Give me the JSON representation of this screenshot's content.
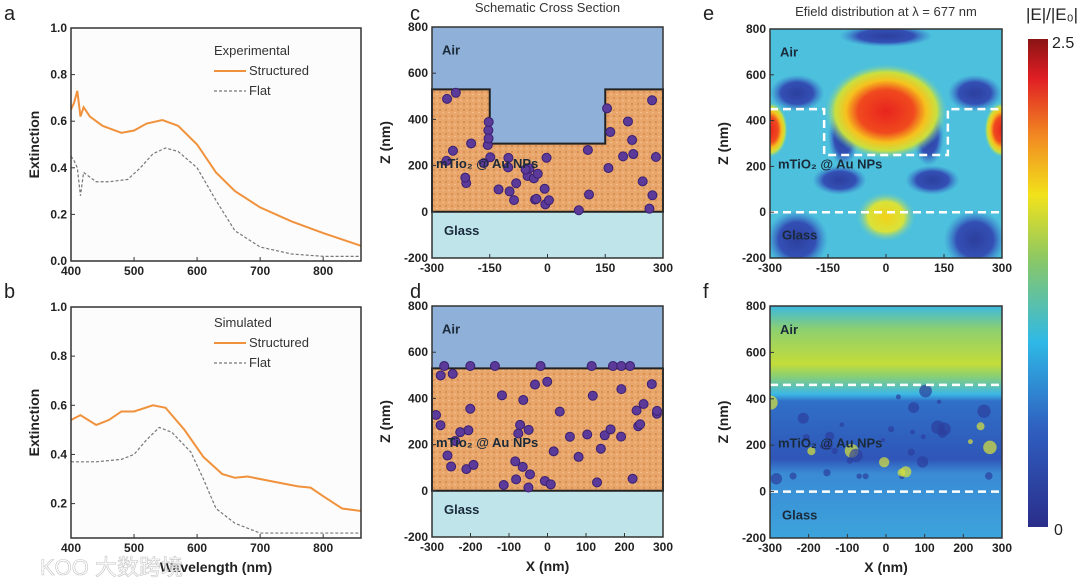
{
  "chart_data": [
    {
      "panel": "a",
      "type": "line",
      "xlabel": "",
      "ylabel": "Extinction",
      "xlim": [
        400,
        860
      ],
      "ylim": [
        0,
        1.0
      ],
      "xticks": [
        400,
        500,
        600,
        700,
        800
      ],
      "yticks": [
        0.0,
        0.2,
        0.4,
        0.6,
        0.8,
        1.0
      ],
      "legend": {
        "title": "Experimental",
        "placement": "top-right"
      },
      "series": [
        {
          "name": "Structured",
          "color": "#f0923c",
          "style": "solid",
          "x": [
            400,
            405,
            410,
            415,
            420,
            430,
            440,
            450,
            460,
            480,
            500,
            520,
            545,
            570,
            600,
            630,
            660,
            700,
            750,
            800,
            860
          ],
          "y": [
            0.65,
            0.68,
            0.73,
            0.62,
            0.66,
            0.62,
            0.6,
            0.58,
            0.57,
            0.55,
            0.56,
            0.59,
            0.605,
            0.58,
            0.5,
            0.38,
            0.3,
            0.23,
            0.17,
            0.12,
            0.065
          ]
        },
        {
          "name": "Flat",
          "color": "#777777",
          "style": "dashed",
          "x": [
            400,
            405,
            410,
            415,
            420,
            430,
            440,
            460,
            490,
            510,
            530,
            550,
            570,
            600,
            630,
            660,
            700,
            750,
            800,
            860
          ],
          "y": [
            0.45,
            0.43,
            0.4,
            0.28,
            0.38,
            0.36,
            0.34,
            0.34,
            0.35,
            0.4,
            0.46,
            0.485,
            0.47,
            0.4,
            0.26,
            0.13,
            0.06,
            0.03,
            0.02,
            0.02
          ]
        }
      ]
    },
    {
      "panel": "b",
      "type": "line",
      "xlabel": "Wavelength (nm)",
      "ylabel": "Extinction",
      "xlim": [
        400,
        860
      ],
      "ylim": [
        0.06,
        1.0
      ],
      "xticks": [
        400,
        500,
        600,
        700,
        800
      ],
      "yticks": [
        0.2,
        0.4,
        0.6,
        0.8,
        1.0
      ],
      "legend": {
        "title": "Simulated",
        "placement": "top-right"
      },
      "series": [
        {
          "name": "Structured",
          "color": "#f0923c",
          "style": "solid",
          "x": [
            400,
            415,
            440,
            460,
            480,
            500,
            530,
            550,
            580,
            610,
            640,
            660,
            680,
            720,
            760,
            780,
            800,
            830,
            860
          ],
          "y": [
            0.54,
            0.56,
            0.52,
            0.54,
            0.575,
            0.575,
            0.6,
            0.59,
            0.5,
            0.39,
            0.32,
            0.305,
            0.31,
            0.29,
            0.27,
            0.265,
            0.23,
            0.18,
            0.17
          ]
        },
        {
          "name": "Flat",
          "color": "#777777",
          "style": "dashed",
          "x": [
            400,
            440,
            480,
            500,
            520,
            540,
            560,
            590,
            610,
            630,
            660,
            700,
            800,
            860
          ],
          "y": [
            0.37,
            0.37,
            0.38,
            0.4,
            0.46,
            0.51,
            0.49,
            0.41,
            0.3,
            0.18,
            0.12,
            0.08,
            0.08,
            0.08
          ]
        }
      ]
    },
    {
      "panel": "c",
      "type": "diagram",
      "title": "Schematic Cross Section",
      "ylabel": "Z (nm)",
      "xlim": [
        -300,
        300
      ],
      "ylim": [
        -200,
        800
      ],
      "xticks": [
        -300,
        -150,
        0,
        150,
        300
      ],
      "yticks": [
        -200,
        0,
        200,
        400,
        600,
        800
      ],
      "regions": [
        "Air",
        "mTio₂ @ Au NPs",
        "Glass"
      ]
    },
    {
      "panel": "d",
      "type": "diagram",
      "xlabel": "X (nm)",
      "ylabel": "Z (nm)",
      "xlim": [
        -300,
        300
      ],
      "ylim": [
        -200,
        800
      ],
      "xticks": [
        -300,
        -200,
        -100,
        0,
        100,
        200,
        300
      ],
      "yticks": [
        -200,
        0,
        200,
        400,
        600,
        800
      ],
      "regions": [
        "Air",
        "mTio₂ @ Au NPs",
        "Glass"
      ]
    },
    {
      "panel": "e",
      "type": "heatmap",
      "title": "Efield distribution at λ = 677 nm",
      "ylabel": "Z (nm)",
      "xlim": [
        -300,
        300
      ],
      "ylim": [
        -200,
        800
      ],
      "xticks": [
        -300,
        -150,
        0,
        150,
        300
      ],
      "yticks": [
        -200,
        0,
        200,
        400,
        600,
        800
      ],
      "regions": [
        "Air",
        "mTiO₂ @ Au NPs",
        "Glass"
      ]
    },
    {
      "panel": "f",
      "type": "heatmap",
      "xlabel": "X (nm)",
      "ylabel": "Z (nm)",
      "xlim": [
        -300,
        300
      ],
      "ylim": [
        -200,
        800
      ],
      "xticks": [
        -300,
        -200,
        -100,
        0,
        100,
        200,
        300
      ],
      "yticks": [
        -200,
        0,
        200,
        400,
        600,
        800
      ],
      "regions": [
        "Air",
        "mTiO₂ @ Au NPs",
        "Glass"
      ]
    },
    {
      "panel": "colorbar",
      "label": "|E|/|E₀|",
      "range": [
        0,
        2.5
      ],
      "max_label": "2.5",
      "min_label": "0"
    }
  ],
  "watermark": "大数跨境"
}
